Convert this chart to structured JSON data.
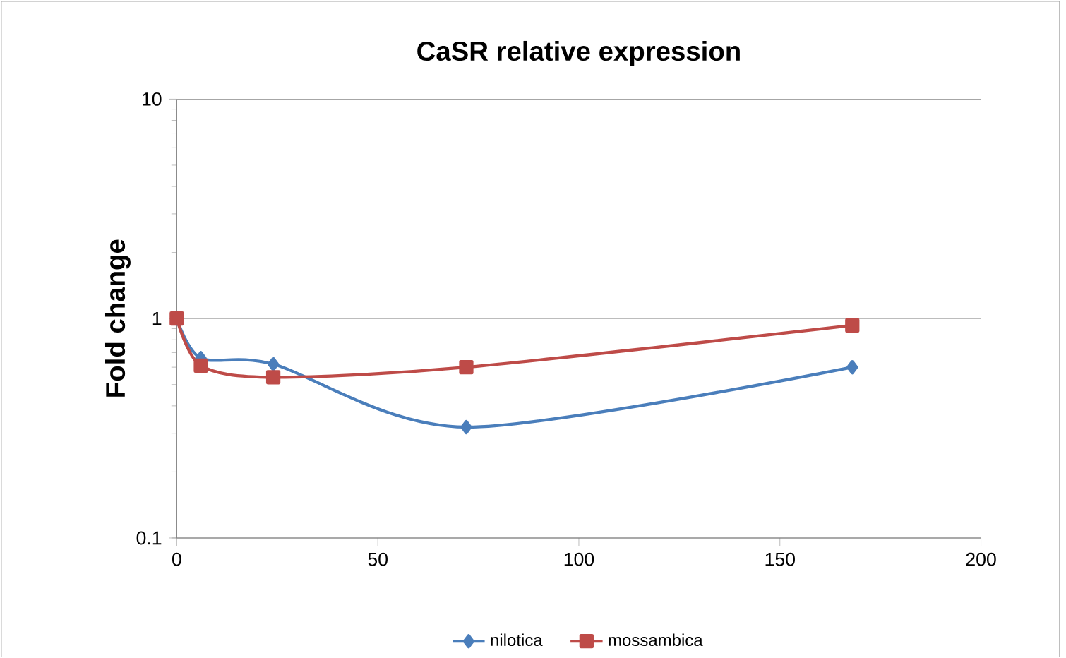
{
  "chart_data": {
    "type": "line",
    "title": "CaSR relative expression",
    "ylabel": "Fold change",
    "x": [
      0,
      6,
      24,
      72,
      168
    ],
    "series": [
      {
        "name": "nilotica",
        "color": "#4a7ebb",
        "marker": "diamond",
        "values": [
          1,
          0.66,
          0.62,
          0.32,
          0.6
        ]
      },
      {
        "name": "mossambica",
        "color": "#be4b48",
        "marker": "square",
        "values": [
          1,
          0.61,
          0.54,
          0.6,
          0.93
        ]
      }
    ],
    "xlim": [
      0,
      200
    ],
    "ylim": [
      0.1,
      10
    ],
    "xticks": [
      0,
      50,
      100,
      150,
      200
    ],
    "yticks": [
      0.1,
      1,
      10
    ],
    "log": "y",
    "grid": "y",
    "legend": "bottom"
  }
}
